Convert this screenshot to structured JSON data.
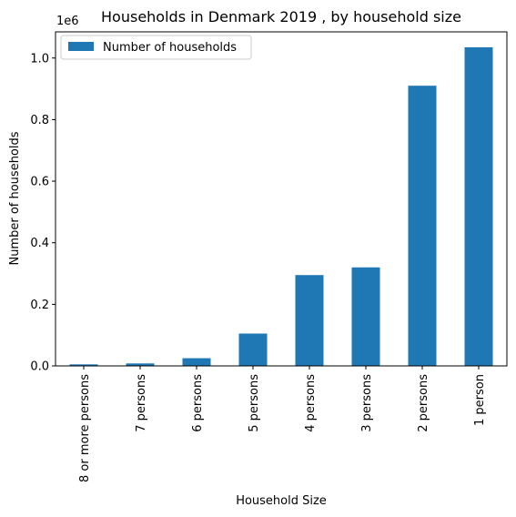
{
  "chart_data": {
    "type": "bar",
    "title": "Households in Denmark 2019 , by household size",
    "xlabel": "Household Size",
    "ylabel": "Number of households",
    "offset_label": "1e6",
    "categories": [
      "8 or more persons",
      "7 persons",
      "6 persons",
      "5 persons",
      "4 persons",
      "3 persons",
      "2 persons",
      "1 person"
    ],
    "series": [
      {
        "name": "Number of households",
        "color": "#1f77b4",
        "values": [
          5000,
          8000,
          25000,
          105000,
          295000,
          320000,
          910000,
          1035000
        ]
      }
    ],
    "ylim": [
      0,
      1085000
    ],
    "yticks": [
      {
        "value": 0,
        "label": "0.0"
      },
      {
        "value": 200000,
        "label": "0.2"
      },
      {
        "value": 400000,
        "label": "0.4"
      },
      {
        "value": 600000,
        "label": "0.6"
      },
      {
        "value": 800000,
        "label": "0.8"
      },
      {
        "value": 1000000,
        "label": "1.0"
      }
    ],
    "grid": false,
    "legend_position": "top-left"
  }
}
